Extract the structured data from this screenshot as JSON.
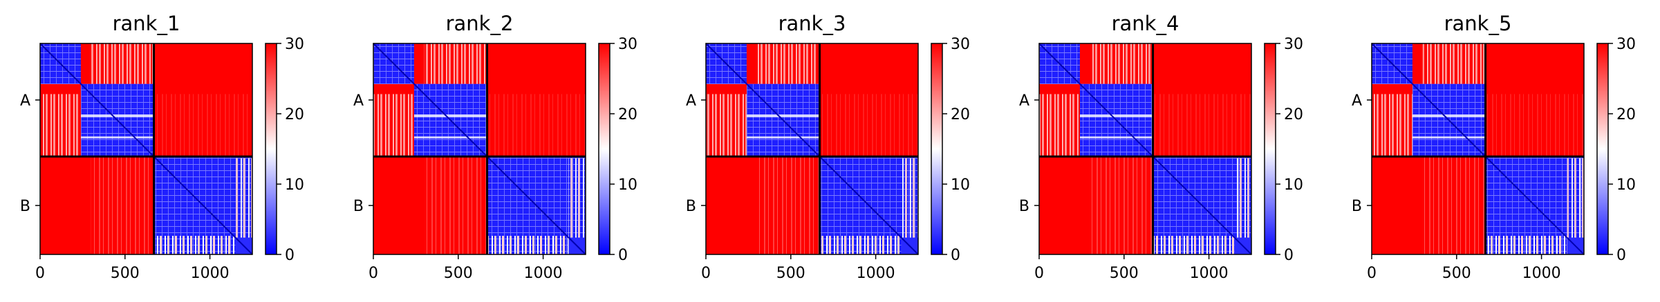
{
  "chart_data": [
    {
      "type": "heatmap",
      "title": "rank_1",
      "y_tick_labels": [
        "A",
        "B"
      ],
      "x_ticks": [
        0,
        500,
        1000
      ],
      "x_range": [
        0,
        1250
      ],
      "chain_boundary": 670,
      "colorbar": {
        "ticks": [
          0,
          10,
          20,
          30
        ],
        "range": [
          0,
          30
        ],
        "colormap": "bwr"
      },
      "blocks": [
        {
          "start": 0,
          "end": 240
        },
        {
          "start": 240,
          "end": 670
        },
        {
          "start": 670,
          "end": 1250
        }
      ]
    },
    {
      "type": "heatmap",
      "title": "rank_2",
      "y_tick_labels": [
        "A",
        "B"
      ],
      "x_ticks": [
        0,
        500,
        1000
      ],
      "x_range": [
        0,
        1250
      ],
      "chain_boundary": 670,
      "colorbar": {
        "ticks": [
          0,
          10,
          20,
          30
        ],
        "range": [
          0,
          30
        ],
        "colormap": "bwr"
      },
      "blocks": [
        {
          "start": 0,
          "end": 240
        },
        {
          "start": 240,
          "end": 670
        },
        {
          "start": 670,
          "end": 1250
        }
      ]
    },
    {
      "type": "heatmap",
      "title": "rank_3",
      "y_tick_labels": [
        "A",
        "B"
      ],
      "x_ticks": [
        0,
        500,
        1000
      ],
      "x_range": [
        0,
        1250
      ],
      "chain_boundary": 670,
      "colorbar": {
        "ticks": [
          0,
          10,
          20,
          30
        ],
        "range": [
          0,
          30
        ],
        "colormap": "bwr"
      },
      "blocks": [
        {
          "start": 0,
          "end": 240
        },
        {
          "start": 240,
          "end": 670
        },
        {
          "start": 670,
          "end": 1250
        }
      ]
    },
    {
      "type": "heatmap",
      "title": "rank_4",
      "y_tick_labels": [
        "A",
        "B"
      ],
      "x_ticks": [
        0,
        500,
        1000
      ],
      "x_range": [
        0,
        1250
      ],
      "chain_boundary": 670,
      "colorbar": {
        "ticks": [
          0,
          10,
          20,
          30
        ],
        "range": [
          0,
          30
        ],
        "colormap": "bwr"
      },
      "blocks": [
        {
          "start": 0,
          "end": 240
        },
        {
          "start": 240,
          "end": 670
        },
        {
          "start": 670,
          "end": 1250
        }
      ]
    },
    {
      "type": "heatmap",
      "title": "rank_5",
      "y_tick_labels": [
        "A",
        "B"
      ],
      "x_ticks": [
        0,
        500,
        1000
      ],
      "x_range": [
        0,
        1250
      ],
      "chain_boundary": 670,
      "colorbar": {
        "ticks": [
          0,
          10,
          20,
          30
        ],
        "range": [
          0,
          30
        ],
        "colormap": "bwr"
      },
      "blocks": [
        {
          "start": 0,
          "end": 240
        },
        {
          "start": 240,
          "end": 670
        },
        {
          "start": 670,
          "end": 1250
        }
      ]
    }
  ],
  "colors": {
    "high": "#ff0000",
    "mid": "#ffffff",
    "low": "#0000ff",
    "axis": "#000000"
  }
}
